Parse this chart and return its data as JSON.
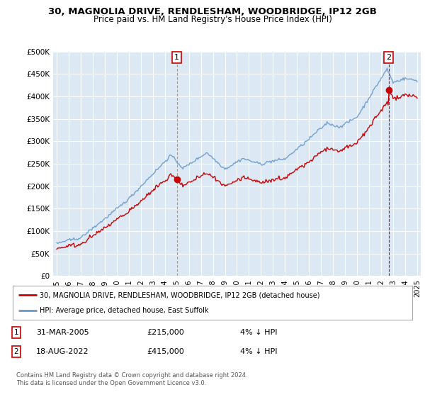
{
  "title": "30, MAGNOLIA DRIVE, RENDLESHAM, WOODBRIDGE, IP12 2GB",
  "subtitle": "Price paid vs. HM Land Registry's House Price Index (HPI)",
  "bg_color": "#dce9f5",
  "grid_color": "#ffffff",
  "ylim": [
    0,
    500000
  ],
  "yticks": [
    0,
    50000,
    100000,
    150000,
    200000,
    250000,
    300000,
    350000,
    400000,
    450000,
    500000
  ],
  "ytick_labels": [
    "£0",
    "£50K",
    "£100K",
    "£150K",
    "£200K",
    "£250K",
    "£300K",
    "£350K",
    "£400K",
    "£450K",
    "£500K"
  ],
  "xlim_start": 1994.7,
  "xlim_end": 2025.3,
  "xtick_years": [
    1995,
    1996,
    1997,
    1998,
    1999,
    2000,
    2001,
    2002,
    2003,
    2004,
    2005,
    2006,
    2007,
    2008,
    2009,
    2010,
    2011,
    2012,
    2013,
    2014,
    2015,
    2016,
    2017,
    2018,
    2019,
    2020,
    2021,
    2022,
    2023,
    2024,
    2025
  ],
  "sale1_x": 2005.0,
  "sale1_y": 215000,
  "sale2_x": 2022.63,
  "sale2_y": 415000,
  "legend_line1": "30, MAGNOLIA DRIVE, RENDLESHAM, WOODBRIDGE, IP12 2GB (detached house)",
  "legend_line2": "HPI: Average price, detached house, East Suffolk",
  "footer": "Contains HM Land Registry data © Crown copyright and database right 2024.\nThis data is licensed under the Open Government Licence v3.0.",
  "line_color_red": "#cc0000",
  "line_color_blue": "#6699cc",
  "vline1_color": "#999999",
  "vline2_color": "#cc0000"
}
